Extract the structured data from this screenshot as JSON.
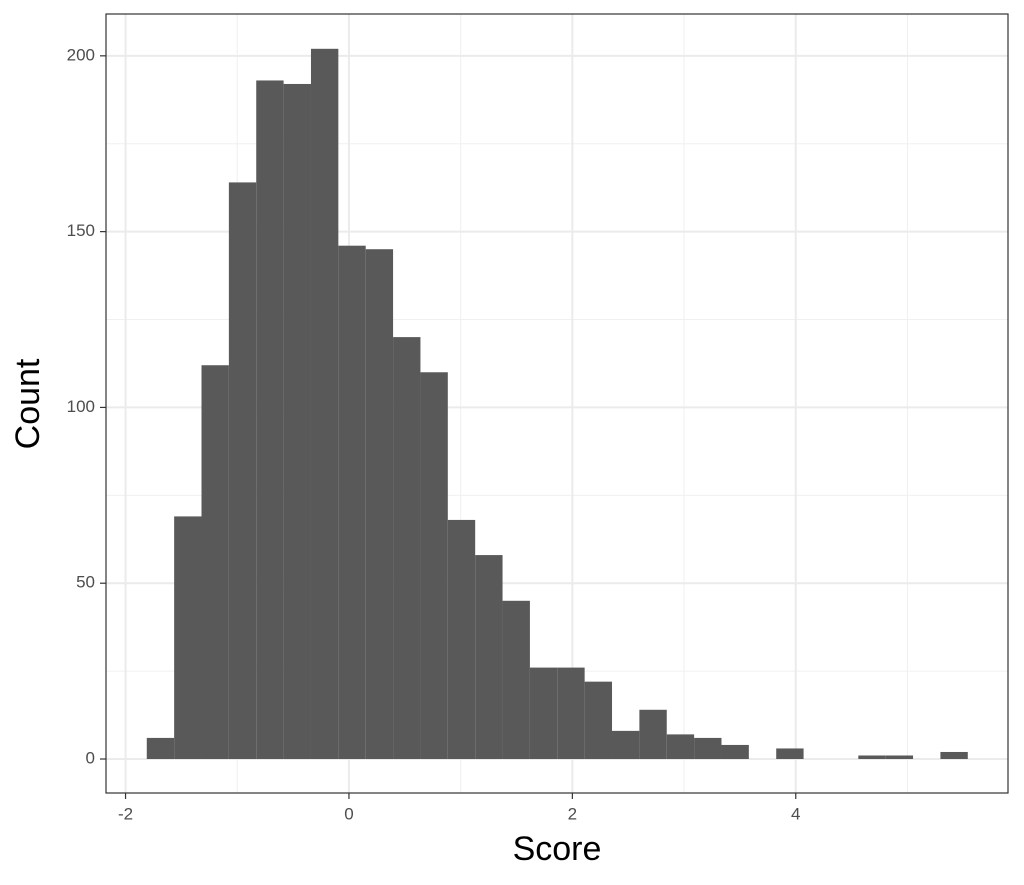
{
  "chart_data": {
    "type": "histogram",
    "x_label": "Score",
    "y_label": "Count",
    "bins": [
      -1.81,
      -1.565,
      -1.32,
      -1.075,
      -0.83,
      -0.585,
      -0.34,
      -0.095,
      0.15,
      0.395,
      0.64,
      0.885,
      1.13,
      1.375,
      1.62,
      1.865,
      2.11,
      2.355,
      2.6,
      2.845,
      3.09,
      3.335,
      3.58,
      3.825,
      4.07,
      4.315,
      4.56,
      4.805,
      5.05,
      5.295,
      5.54
    ],
    "counts": [
      6,
      69,
      112,
      164,
      193,
      192,
      202,
      146,
      145,
      120,
      110,
      68,
      58,
      45,
      26,
      26,
      22,
      8,
      14,
      7,
      6,
      4,
      0,
      3,
      0,
      0,
      1,
      1,
      0,
      2
    ],
    "color": "#595959",
    "xlim": [
      -2.175,
      5.9
    ],
    "ylim": [
      -9.67,
      211.9
    ],
    "xticks": [
      -2,
      0,
      2,
      4
    ],
    "yticks": [
      0,
      50,
      100,
      150,
      200
    ],
    "x_minor_ticks": [
      -1,
      1,
      3,
      5
    ],
    "y_minor_ticks": [
      25,
      75,
      125,
      175
    ],
    "grid": true
  }
}
